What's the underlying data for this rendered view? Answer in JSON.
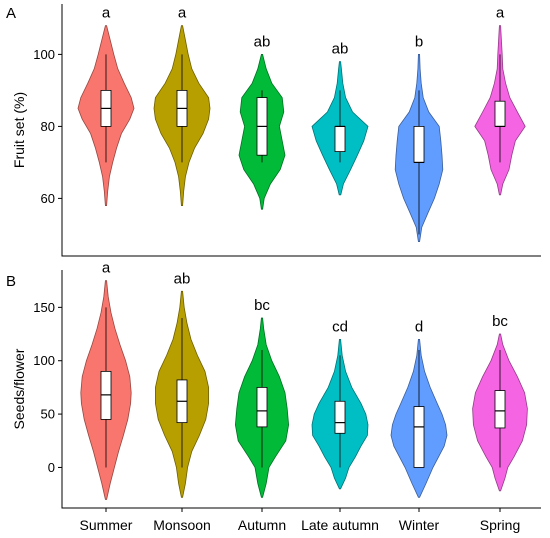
{
  "chart_data": [
    {
      "type": "violin",
      "panel": "A",
      "title": "",
      "xlabel": "",
      "ylabel": "Fruit set (%)",
      "ylim": [
        44,
        114
      ],
      "yticks": [
        60,
        80,
        100
      ],
      "categories": [
        "Summer",
        "Monsoon",
        "Autumn",
        "Late autumn",
        "Winter",
        "Spring"
      ],
      "show_category_labels": false,
      "violins": [
        {
          "category": "Summer",
          "color": "#F8766D",
          "letter": "a",
          "min": 58,
          "max": 108,
          "whisker_low": 70,
          "whisker_high": 100,
          "q1": 80,
          "median": 85,
          "q3": 90,
          "density": [
            [
              58,
              0.02
            ],
            [
              62,
              0.06
            ],
            [
              66,
              0.12
            ],
            [
              70,
              0.24
            ],
            [
              74,
              0.38
            ],
            [
              78,
              0.55
            ],
            [
              82,
              0.85
            ],
            [
              85,
              1.0
            ],
            [
              88,
              0.9
            ],
            [
              92,
              0.65
            ],
            [
              96,
              0.42
            ],
            [
              100,
              0.28
            ],
            [
              104,
              0.15
            ],
            [
              108,
              0.02
            ]
          ]
        },
        {
          "category": "Monsoon",
          "color": "#B79F00",
          "letter": "a",
          "min": 58,
          "max": 108,
          "whisker_low": 70,
          "whisker_high": 100,
          "q1": 80,
          "median": 85,
          "q3": 90,
          "density": [
            [
              58,
              0.02
            ],
            [
              62,
              0.06
            ],
            [
              66,
              0.12
            ],
            [
              70,
              0.25
            ],
            [
              74,
              0.45
            ],
            [
              78,
              0.75
            ],
            [
              82,
              0.95
            ],
            [
              85,
              1.0
            ],
            [
              88,
              0.95
            ],
            [
              92,
              0.6
            ],
            [
              96,
              0.35
            ],
            [
              100,
              0.22
            ],
            [
              104,
              0.12
            ],
            [
              108,
              0.02
            ]
          ]
        },
        {
          "category": "Autumn",
          "color": "#00BA38",
          "letter": "ab",
          "min": 57,
          "max": 100,
          "whisker_low": 70,
          "whisker_high": 90,
          "q1": 72,
          "median": 80,
          "q3": 88,
          "density": [
            [
              57,
              0.02
            ],
            [
              60,
              0.08
            ],
            [
              64,
              0.3
            ],
            [
              68,
              0.65
            ],
            [
              72,
              0.82
            ],
            [
              76,
              0.72
            ],
            [
              80,
              0.62
            ],
            [
              84,
              0.78
            ],
            [
              88,
              0.72
            ],
            [
              92,
              0.35
            ],
            [
              96,
              0.15
            ],
            [
              100,
              0.02
            ]
          ]
        },
        {
          "category": "Late autumn",
          "color": "#00BFC4",
          "letter": "ab",
          "min": 61,
          "max": 98,
          "whisker_low": 70,
          "whisker_high": 90,
          "q1": 73,
          "median": 80,
          "q3": 80,
          "density": [
            [
              61,
              0.03
            ],
            [
              64,
              0.12
            ],
            [
              68,
              0.38
            ],
            [
              72,
              0.62
            ],
            [
              76,
              0.85
            ],
            [
              80,
              1.0
            ],
            [
              84,
              0.45
            ],
            [
              88,
              0.2
            ],
            [
              92,
              0.1
            ],
            [
              96,
              0.05
            ],
            [
              98,
              0.02
            ]
          ]
        },
        {
          "category": "Winter",
          "color": "#619CFF",
          "letter": "b",
          "min": 48,
          "max": 100,
          "whisker_low": 50,
          "whisker_high": 90,
          "q1": 70,
          "median": 70,
          "q3": 80,
          "density": [
            [
              48,
              0.02
            ],
            [
              52,
              0.1
            ],
            [
              56,
              0.32
            ],
            [
              60,
              0.55
            ],
            [
              64,
              0.72
            ],
            [
              68,
              0.85
            ],
            [
              72,
              0.82
            ],
            [
              76,
              0.78
            ],
            [
              80,
              0.72
            ],
            [
              84,
              0.35
            ],
            [
              88,
              0.15
            ],
            [
              92,
              0.08
            ],
            [
              96,
              0.04
            ],
            [
              100,
              0.02
            ]
          ]
        },
        {
          "category": "Spring",
          "color": "#F564E3",
          "letter": "a",
          "min": 61,
          "max": 108,
          "whisker_low": 70,
          "whisker_high": 100,
          "q1": 80,
          "median": 80,
          "q3": 87,
          "density": [
            [
              61,
              0.02
            ],
            [
              64,
              0.1
            ],
            [
              68,
              0.32
            ],
            [
              72,
              0.42
            ],
            [
              76,
              0.55
            ],
            [
              80,
              0.9
            ],
            [
              84,
              0.62
            ],
            [
              88,
              0.35
            ],
            [
              92,
              0.2
            ],
            [
              96,
              0.1
            ],
            [
              100,
              0.08
            ],
            [
              104,
              0.05
            ],
            [
              108,
              0.02
            ]
          ]
        }
      ]
    },
    {
      "type": "violin",
      "panel": "B",
      "title": "",
      "xlabel": "",
      "ylabel": "Seeds/flower",
      "ylim": [
        -38,
        185
      ],
      "yticks": [
        0,
        50,
        100,
        150
      ],
      "categories": [
        "Summer",
        "Monsoon",
        "Autumn",
        "Late autumn",
        "Winter",
        "Spring"
      ],
      "show_category_labels": true,
      "violins": [
        {
          "category": "Summer",
          "color": "#F8766D",
          "letter": "a",
          "min": -30,
          "max": 175,
          "whisker_low": 0,
          "whisker_high": 150,
          "q1": 45,
          "median": 68,
          "q3": 90,
          "density": [
            [
              -30,
              0.02
            ],
            [
              -15,
              0.15
            ],
            [
              0,
              0.3
            ],
            [
              15,
              0.45
            ],
            [
              30,
              0.62
            ],
            [
              45,
              0.78
            ],
            [
              60,
              0.88
            ],
            [
              70,
              0.9
            ],
            [
              85,
              0.85
            ],
            [
              100,
              0.7
            ],
            [
              115,
              0.5
            ],
            [
              130,
              0.32
            ],
            [
              145,
              0.18
            ],
            [
              160,
              0.08
            ],
            [
              175,
              0.02
            ]
          ]
        },
        {
          "category": "Monsoon",
          "color": "#B79F00",
          "letter": "ab",
          "min": -28,
          "max": 165,
          "whisker_low": 0,
          "whisker_high": 140,
          "q1": 42,
          "median": 62,
          "q3": 82,
          "density": [
            [
              -28,
              0.02
            ],
            [
              -15,
              0.12
            ],
            [
              0,
              0.2
            ],
            [
              15,
              0.35
            ],
            [
              30,
              0.62
            ],
            [
              45,
              0.85
            ],
            [
              60,
              0.95
            ],
            [
              75,
              0.95
            ],
            [
              90,
              0.82
            ],
            [
              105,
              0.55
            ],
            [
              120,
              0.32
            ],
            [
              135,
              0.18
            ],
            [
              150,
              0.08
            ],
            [
              165,
              0.02
            ]
          ]
        },
        {
          "category": "Autumn",
          "color": "#00BA38",
          "letter": "bc",
          "min": -28,
          "max": 140,
          "whisker_low": 0,
          "whisker_high": 110,
          "q1": 38,
          "median": 53,
          "q3": 75,
          "density": [
            [
              -28,
              0.02
            ],
            [
              -15,
              0.15
            ],
            [
              0,
              0.25
            ],
            [
              10,
              0.48
            ],
            [
              25,
              0.85
            ],
            [
              40,
              0.95
            ],
            [
              55,
              0.9
            ],
            [
              70,
              0.82
            ],
            [
              85,
              0.62
            ],
            [
              100,
              0.35
            ],
            [
              115,
              0.15
            ],
            [
              130,
              0.06
            ],
            [
              140,
              0.02
            ]
          ]
        },
        {
          "category": "Late autumn",
          "color": "#00BFC4",
          "letter": "cd",
          "min": -20,
          "max": 120,
          "whisker_low": 0,
          "whisker_high": 105,
          "q1": 32,
          "median": 42,
          "q3": 62,
          "density": [
            [
              -20,
              0.02
            ],
            [
              -10,
              0.2
            ],
            [
              0,
              0.32
            ],
            [
              10,
              0.55
            ],
            [
              20,
              0.75
            ],
            [
              30,
              0.98
            ],
            [
              40,
              1.0
            ],
            [
              50,
              0.92
            ],
            [
              60,
              0.75
            ],
            [
              75,
              0.42
            ],
            [
              90,
              0.2
            ],
            [
              105,
              0.08
            ],
            [
              120,
              0.02
            ]
          ]
        },
        {
          "category": "Winter",
          "color": "#619CFF",
          "letter": "d",
          "min": -28,
          "max": 120,
          "whisker_low": 0,
          "whisker_high": 110,
          "q1": 0,
          "median": 38,
          "q3": 57,
          "density": [
            [
              -28,
              0.02
            ],
            [
              -15,
              0.25
            ],
            [
              0,
              0.5
            ],
            [
              10,
              0.7
            ],
            [
              20,
              0.9
            ],
            [
              30,
              1.0
            ],
            [
              40,
              0.95
            ],
            [
              50,
              0.82
            ],
            [
              60,
              0.65
            ],
            [
              75,
              0.4
            ],
            [
              90,
              0.2
            ],
            [
              105,
              0.08
            ],
            [
              120,
              0.02
            ]
          ]
        },
        {
          "category": "Spring",
          "color": "#F564E3",
          "letter": "bc",
          "min": -22,
          "max": 125,
          "whisker_low": 0,
          "whisker_high": 110,
          "q1": 37,
          "median": 53,
          "q3": 72,
          "density": [
            [
              -22,
              0.02
            ],
            [
              -10,
              0.18
            ],
            [
              0,
              0.28
            ],
            [
              10,
              0.5
            ],
            [
              25,
              0.8
            ],
            [
              40,
              0.95
            ],
            [
              55,
              0.98
            ],
            [
              70,
              0.88
            ],
            [
              85,
              0.62
            ],
            [
              100,
              0.32
            ],
            [
              115,
              0.1
            ],
            [
              125,
              0.02
            ]
          ]
        }
      ]
    }
  ]
}
